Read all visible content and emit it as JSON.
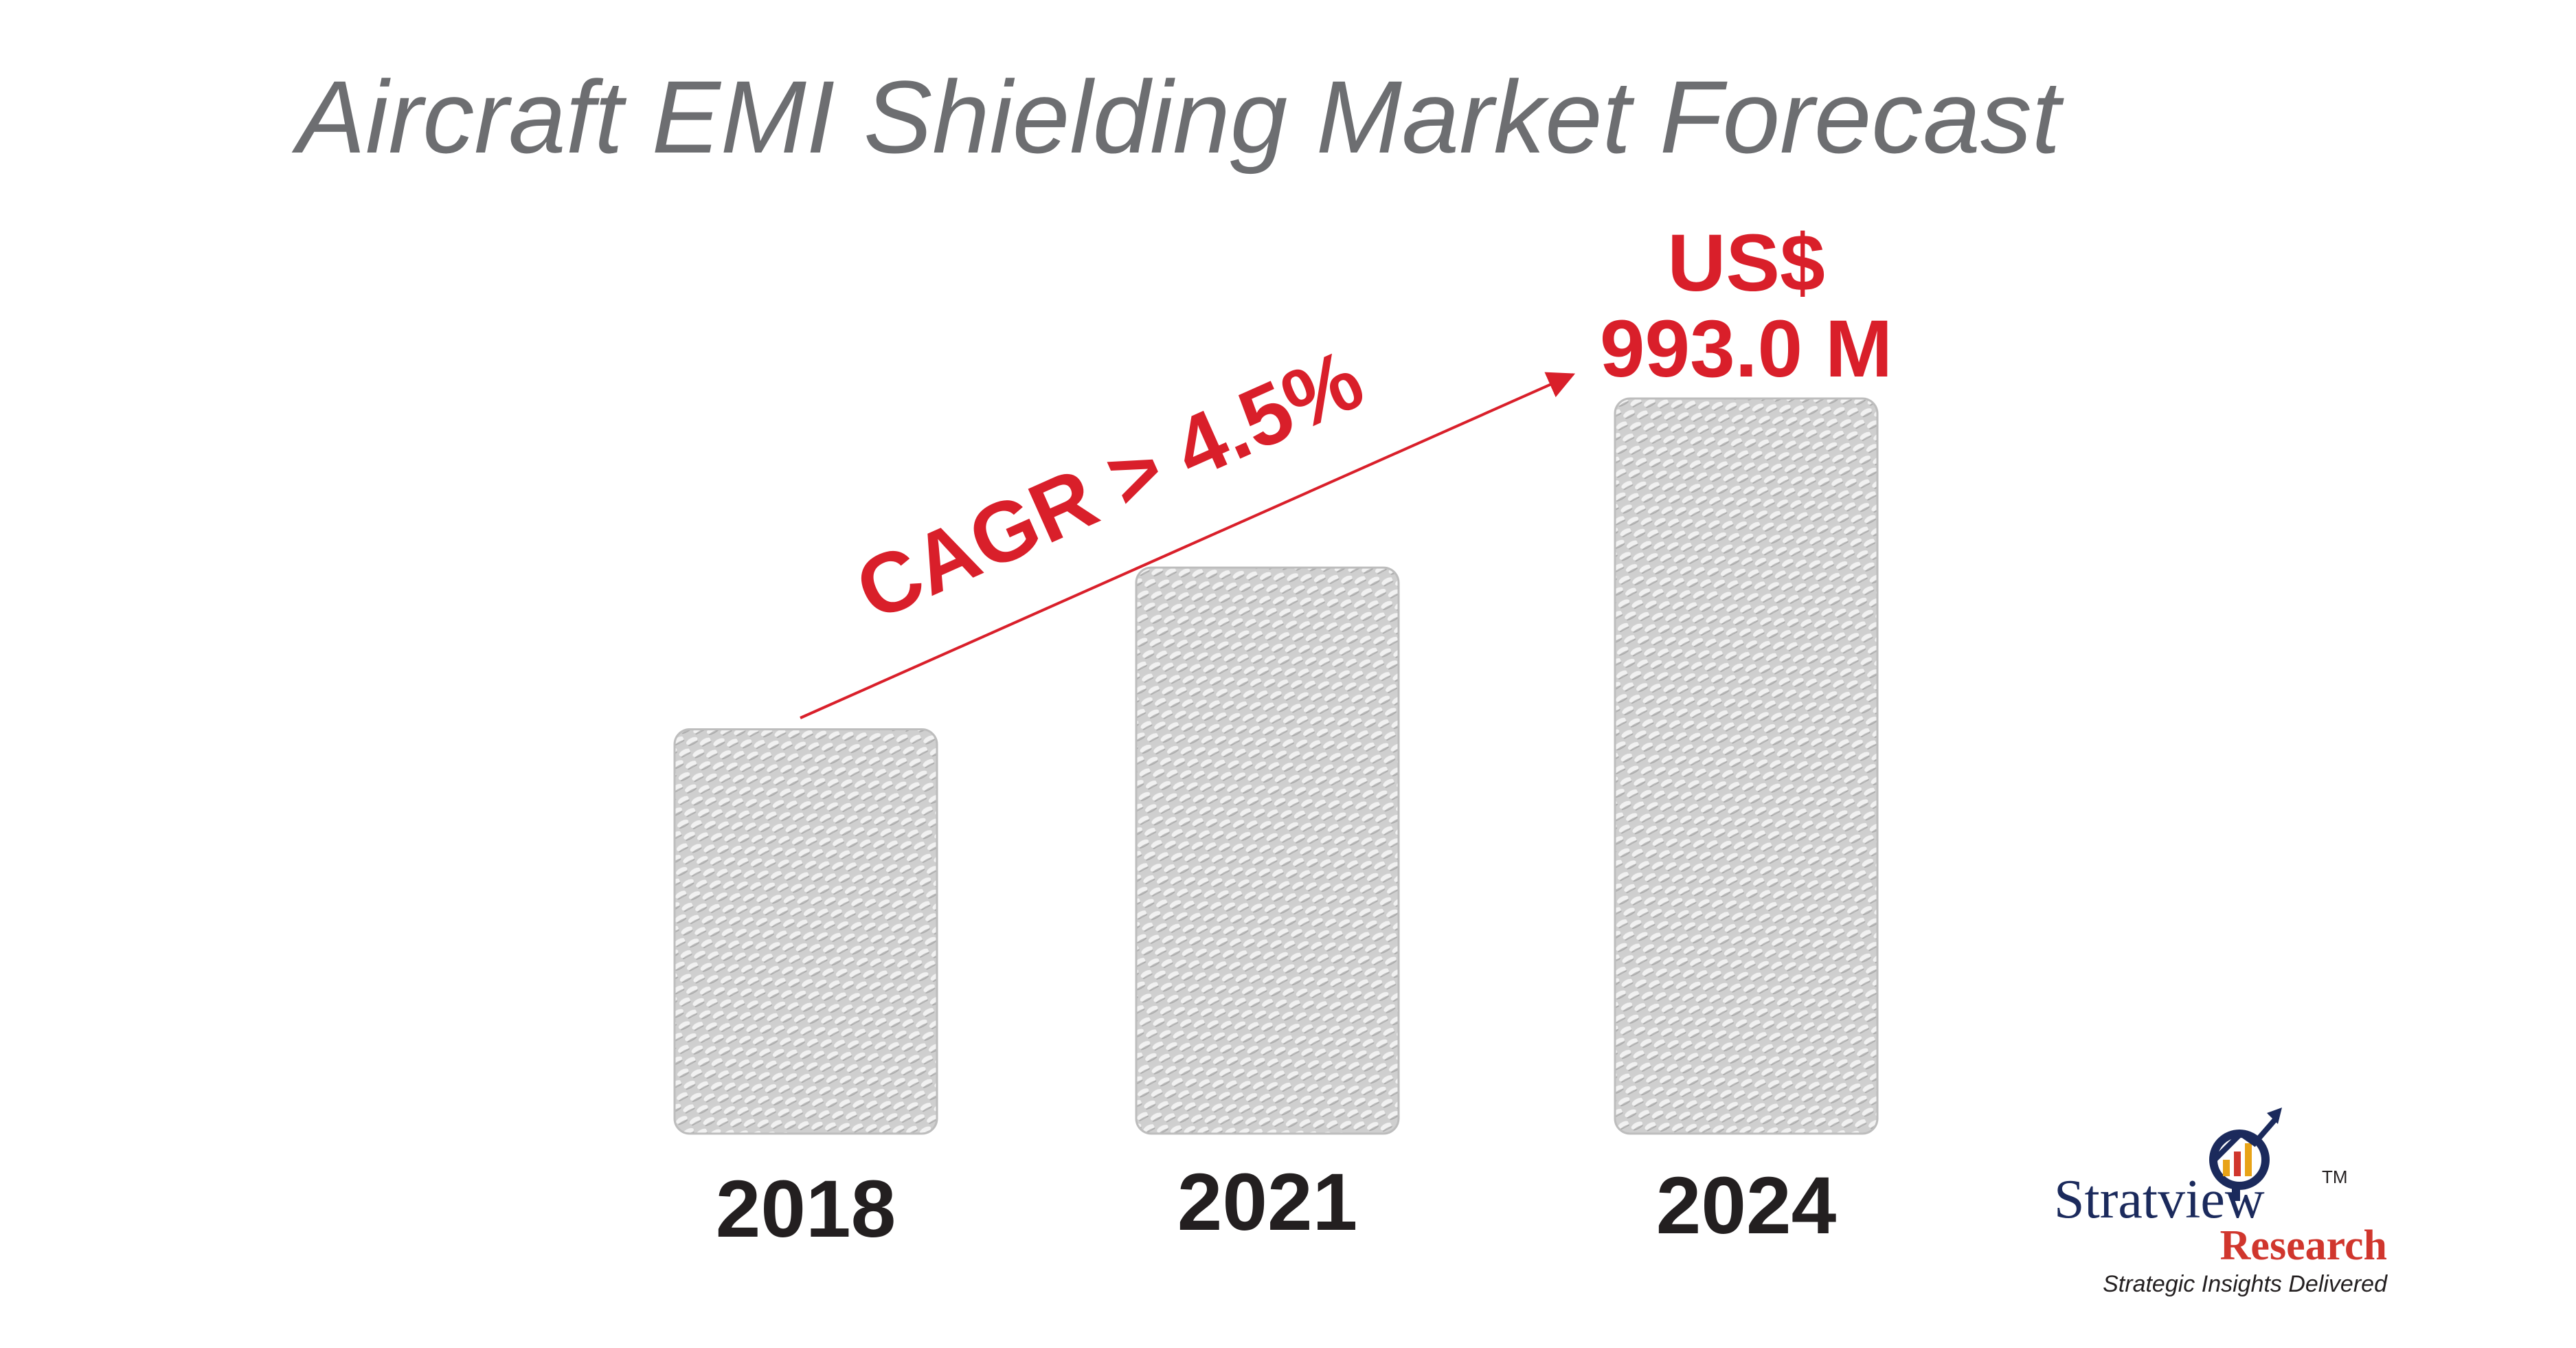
{
  "chart_data": {
    "type": "bar",
    "title": "Aircraft EMI Shielding Market Forecast",
    "categories": [
      "2018",
      "2021",
      "2024"
    ],
    "values": [
      null,
      null,
      993.0
    ],
    "relative_bar_heights": [
      0.55,
      0.77,
      1.0
    ],
    "units": "US$ M",
    "value_labels": [
      {
        "category": "2024",
        "line1": "US$",
        "line2": "993.0 M"
      }
    ],
    "annotation": {
      "text": "CAGR > 4.5%",
      "from_category": "2018",
      "to_category": "2024"
    },
    "xlabel": "",
    "ylabel": "",
    "grid": false,
    "legend": "none",
    "colors": {
      "title": "#6d6e71",
      "highlight": "#d91f2a",
      "year_text": "#231f20",
      "bar_texture_light": "#d4d4d4",
      "bar_texture_dark": "#8c8c8c"
    }
  },
  "brand": {
    "name_part1": "Strat",
    "name_part2": "v",
    "name_part3": "iew",
    "trademark": "TM",
    "sub": "Research",
    "tagline": "Strategic Insights Delivered",
    "icon": "magnifier-growth-chart-icon",
    "colors": {
      "navy": "#1b2a5c",
      "red": "#d0362d",
      "gold": "#e8a317"
    }
  }
}
